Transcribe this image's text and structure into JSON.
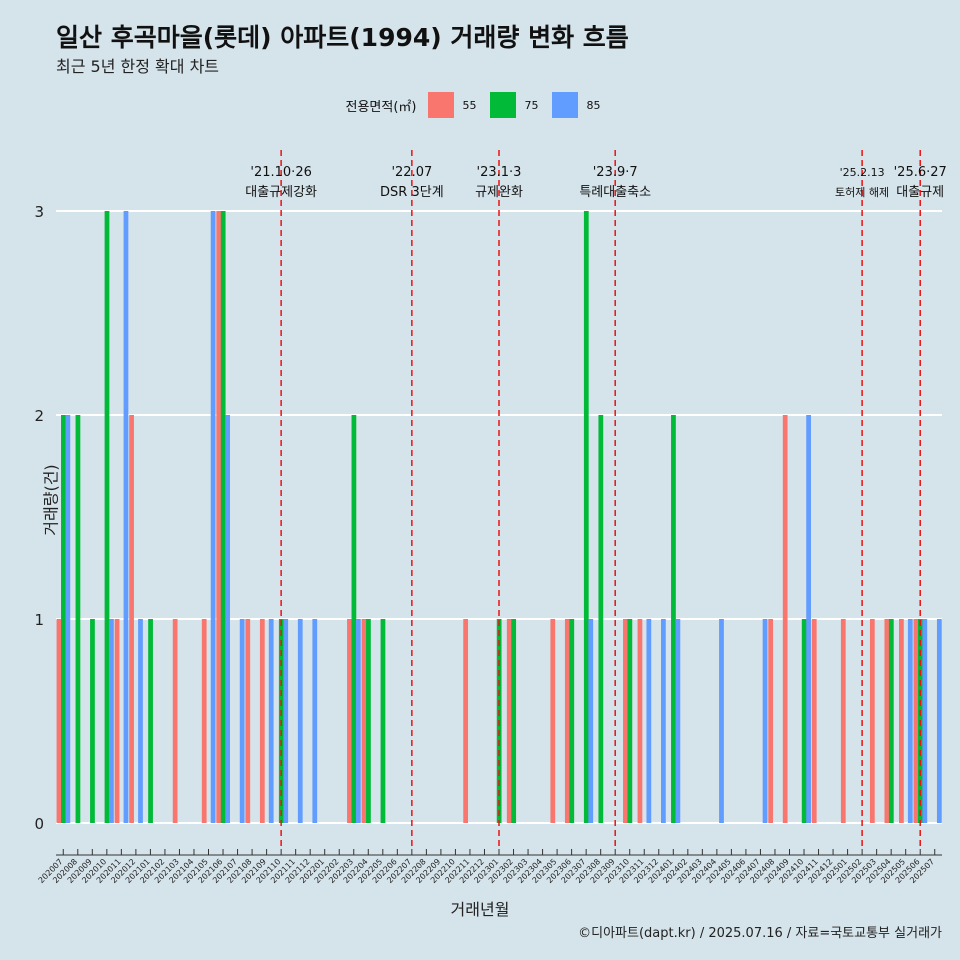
{
  "header": {
    "title": "일산 후곡마을(롯데) 아파트(1994) 거래량 변화 흐름",
    "subtitle": "최근 5년 한정 확대 차트"
  },
  "footer": {
    "caption": "©디아파트(dapt.kr) / 2025.07.16 / 자료=국토교통부 실거래가"
  },
  "chart_data": {
    "type": "bar",
    "title": "일산 후곡마을(롯데) 아파트(1994) 거래량 변화 흐름",
    "subtitle": "최근 5년 한정 확대 차트",
    "xlabel": "거래년월",
    "ylabel": "거래량(건)",
    "ylim": [
      0,
      3
    ],
    "yticks": [
      0,
      1,
      2,
      3
    ],
    "grid": "horizontal",
    "legend": {
      "title": "전용면적(㎡)",
      "position": "top"
    },
    "colors": {
      "55": "#f8766d",
      "75": "#00ba38",
      "85": "#619cff"
    },
    "categories": [
      "202007",
      "202008",
      "202009",
      "202010",
      "202011",
      "202012",
      "202101",
      "202102",
      "202103",
      "202104",
      "202105",
      "202106",
      "202107",
      "202108",
      "202109",
      "202110",
      "202111",
      "202112",
      "202201",
      "202202",
      "202203",
      "202204",
      "202205",
      "202206",
      "202207",
      "202208",
      "202209",
      "202210",
      "202211",
      "202212",
      "202301",
      "202302",
      "202303",
      "202304",
      "202305",
      "202306",
      "202307",
      "202308",
      "202309",
      "202310",
      "202311",
      "202312",
      "202401",
      "202402",
      "202403",
      "202404",
      "202405",
      "202406",
      "202407",
      "202408",
      "202409",
      "202410",
      "202411",
      "202412",
      "202501",
      "202502",
      "202503",
      "202504",
      "202505",
      "202506",
      "202507"
    ],
    "series": [
      {
        "name": "55",
        "values": [
          1,
          0,
          0,
          0,
          1,
          2,
          0,
          0,
          1,
          0,
          1,
          3,
          0,
          1,
          1,
          0,
          0,
          0,
          0,
          0,
          1,
          1,
          0,
          0,
          0,
          0,
          0,
          0,
          1,
          0,
          0,
          1,
          0,
          0,
          1,
          1,
          0,
          0,
          0,
          1,
          1,
          0,
          0,
          0,
          0,
          0,
          0,
          0,
          0,
          1,
          2,
          0,
          1,
          0,
          1,
          0,
          1,
          1,
          1,
          1,
          0
        ]
      },
      {
        "name": "75",
        "values": [
          2,
          2,
          1,
          3,
          0,
          0,
          1,
          0,
          0,
          0,
          0,
          3,
          0,
          0,
          0,
          1,
          0,
          0,
          0,
          0,
          2,
          1,
          1,
          0,
          0,
          0,
          0,
          0,
          0,
          0,
          1,
          1,
          0,
          0,
          0,
          1,
          3,
          2,
          0,
          1,
          0,
          0,
          2,
          0,
          0,
          0,
          0,
          0,
          0,
          0,
          0,
          1,
          0,
          0,
          0,
          0,
          0,
          1,
          0,
          1,
          0
        ]
      },
      {
        "name": "85",
        "values": [
          2,
          0,
          0,
          1,
          3,
          1,
          0,
          0,
          0,
          0,
          3,
          2,
          1,
          0,
          1,
          1,
          1,
          1,
          0,
          0,
          1,
          0,
          0,
          0,
          0,
          0,
          0,
          0,
          0,
          0,
          0,
          0,
          0,
          0,
          0,
          0,
          1,
          0,
          0,
          0,
          1,
          1,
          1,
          0,
          0,
          1,
          0,
          0,
          1,
          0,
          0,
          2,
          0,
          0,
          0,
          0,
          0,
          0,
          1,
          1,
          1
        ]
      }
    ],
    "annotations": [
      {
        "category": "202110",
        "date": "'21.10·26",
        "label": "대출규제강화"
      },
      {
        "category": "202207",
        "date": "'22.07",
        "label": "DSR 3단계"
      },
      {
        "category": "202301",
        "date": "'23.1·3",
        "label": "규제완화"
      },
      {
        "category": "202309",
        "date": "'23.9·7",
        "label": "특례대출축소"
      },
      {
        "category": "202502",
        "date": "'25.2.13",
        "label": "토허제 해제"
      },
      {
        "category": "202506",
        "date": "'25.6·27",
        "label": "대출규제"
      }
    ]
  }
}
